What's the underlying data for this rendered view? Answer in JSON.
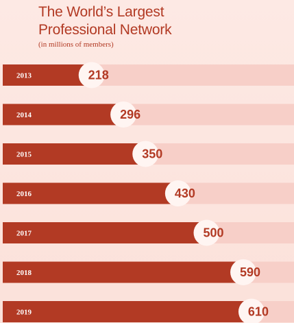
{
  "chart_data": {
    "type": "bar",
    "orientation": "horizontal",
    "title_lines": [
      "The World’s Largest",
      "Professional Network"
    ],
    "subtitle": "(in millions of members)",
    "categories": [
      "2013",
      "2014",
      "2015",
      "2016",
      "2017",
      "2018",
      "2019"
    ],
    "values": [
      218,
      296,
      350,
      430,
      500,
      590,
      610
    ],
    "xlim": [
      0,
      650
    ],
    "grid": false,
    "legend": "none",
    "colors": {
      "bar": "#b23a24",
      "track": "#f7cfc8",
      "background": "#fbe3dd",
      "value_bubble": "#fff5f2",
      "text": "#b23a24"
    }
  }
}
